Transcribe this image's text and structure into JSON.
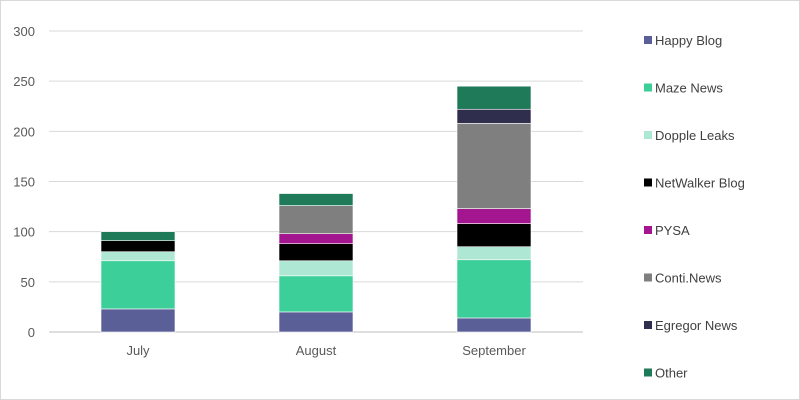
{
  "chart_data": {
    "type": "bar",
    "stacked": true,
    "title": "",
    "xlabel": "",
    "ylabel": "",
    "ylim": [
      0,
      300
    ],
    "yticks": [
      0,
      50,
      100,
      150,
      200,
      250,
      300
    ],
    "grid": true,
    "legend_position": "right",
    "categories": [
      "July",
      "August",
      "September"
    ],
    "series": [
      {
        "name": "Happy Blog",
        "color": "#5b5f97",
        "values": [
          23,
          20,
          14
        ]
      },
      {
        "name": "Maze News",
        "color": "#3ccf9a",
        "values": [
          48,
          36,
          58
        ]
      },
      {
        "name": "Dopple Leaks",
        "color": "#aee8d4",
        "values": [
          9,
          15,
          13
        ]
      },
      {
        "name": "NetWalker Blog",
        "color": "#000000",
        "values": [
          11,
          17,
          23
        ]
      },
      {
        "name": "PYSA",
        "color": "#a4168f",
        "values": [
          0,
          10,
          15
        ]
      },
      {
        "name": "Conti.News",
        "color": "#7f7f7f",
        "values": [
          0,
          28,
          85
        ]
      },
      {
        "name": "Egregor News",
        "color": "#2f2e4c",
        "values": [
          0,
          0,
          14
        ]
      },
      {
        "name": "Other",
        "color": "#1f7a5a",
        "values": [
          9,
          12,
          23
        ]
      }
    ]
  }
}
